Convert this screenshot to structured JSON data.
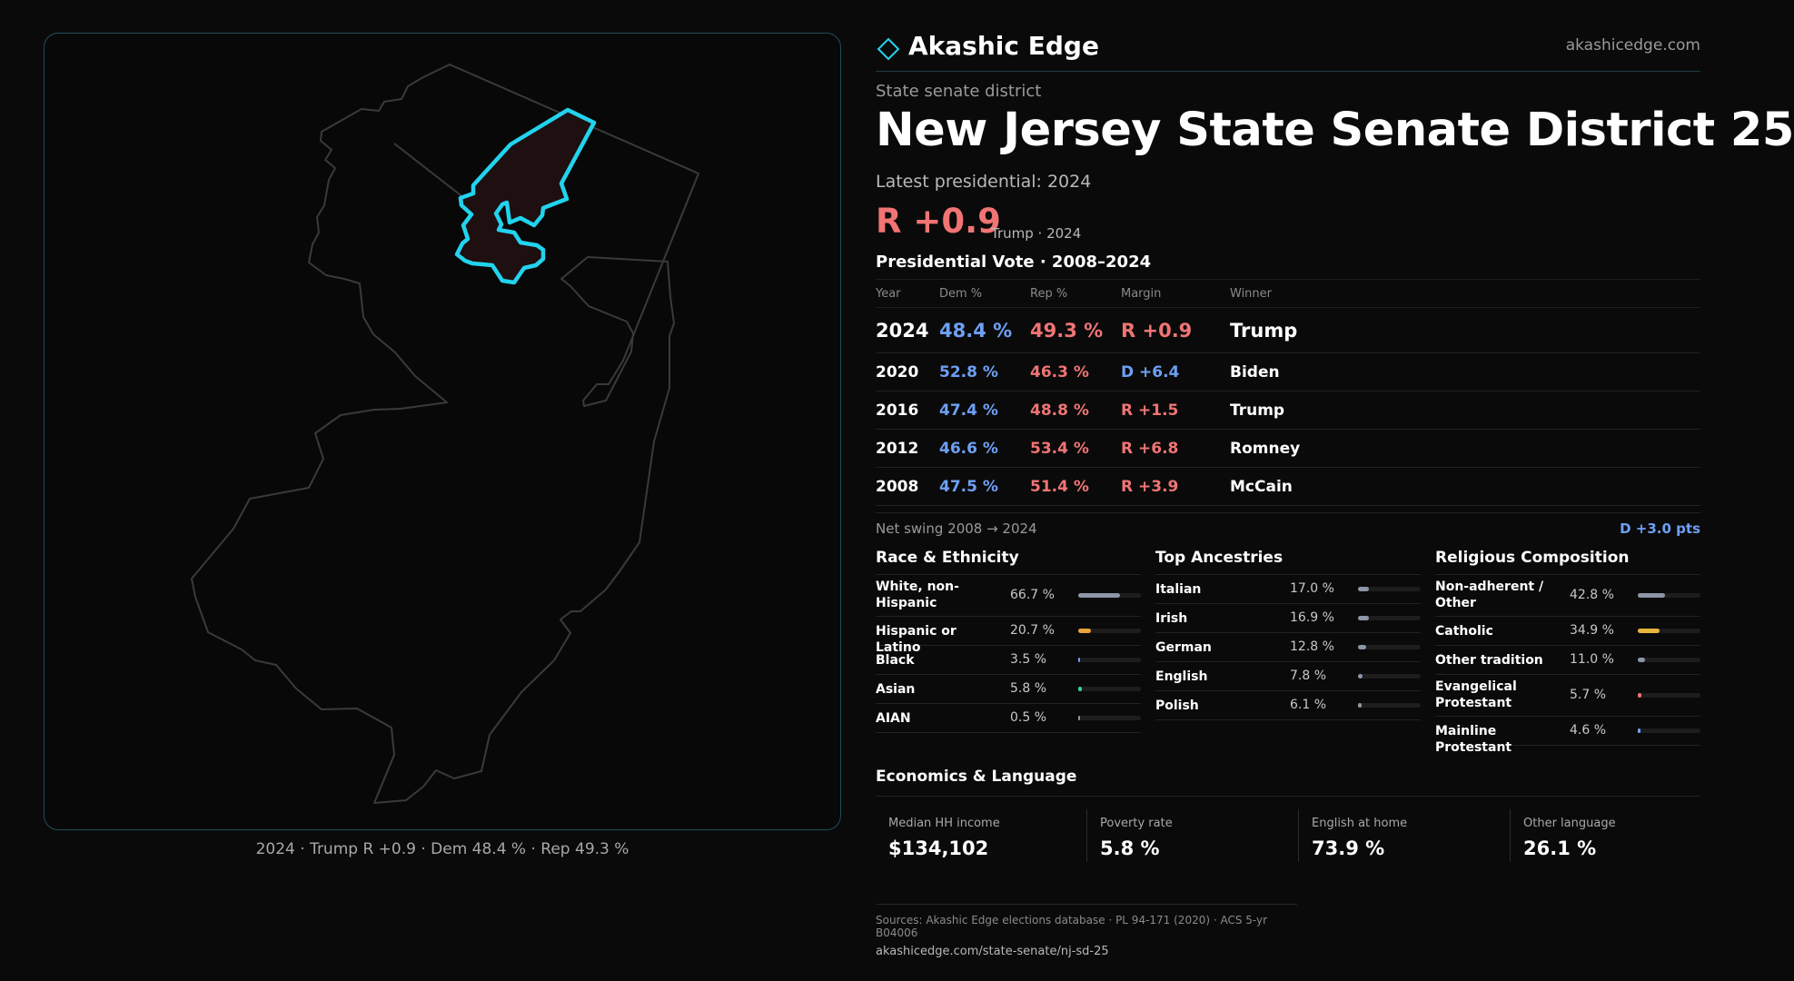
{
  "brand": {
    "name": "Akashic Edge",
    "site": "akashicedge.com"
  },
  "district": {
    "kind": "State senate district",
    "title": "New Jersey State Senate District 25",
    "latest_label": "Latest presidential: 2024",
    "margin": "R +0.9",
    "margin_note": "Trump · 2024"
  },
  "map": {
    "caption": "2024 · Trump R +0.9 · Dem 48.4 % · Rep 49.3 %",
    "state_outline_color": "#3a3a3a",
    "highlight_color": "#22d3ee",
    "highlight_fill": "#1e0f10"
  },
  "presidential": {
    "title": "Presidential Vote · 2008–2024",
    "columns": [
      "Year",
      "Dem %",
      "Rep %",
      "Margin",
      "Winner"
    ],
    "rows": [
      {
        "year": "2024",
        "dem": "48.4 %",
        "rep": "49.3 %",
        "margin": "R +0.9",
        "party": "R",
        "winner": "Trump"
      },
      {
        "year": "2020",
        "dem": "52.8 %",
        "rep": "46.3 %",
        "margin": "D +6.4",
        "party": "D",
        "winner": "Biden"
      },
      {
        "year": "2016",
        "dem": "47.4 %",
        "rep": "48.8 %",
        "margin": "R +1.5",
        "party": "R",
        "winner": "Trump"
      },
      {
        "year": "2012",
        "dem": "46.6 %",
        "rep": "53.4 %",
        "margin": "R +6.8",
        "party": "R",
        "winner": "Romney"
      },
      {
        "year": "2008",
        "dem": "47.5 %",
        "rep": "51.4 %",
        "margin": "R +3.9",
        "party": "R",
        "winner": "McCain"
      }
    ],
    "swing_label": "Net swing 2008 → 2024",
    "swing_value": "D +3.0 pts"
  },
  "race": {
    "title": "Race & Ethnicity",
    "items": [
      {
        "label": "White, non-Hispanic",
        "pct": "66.7 %",
        "value": 66.7,
        "color": "#8d96a8"
      },
      {
        "label": "Hispanic or Latino",
        "pct": "20.7 %",
        "value": 20.7,
        "color": "#e8a33c"
      },
      {
        "label": "Black",
        "pct": "3.5 %",
        "value": 3.5,
        "color": "#6ea0f5"
      },
      {
        "label": "Asian",
        "pct": "5.8 %",
        "value": 5.8,
        "color": "#34d399"
      },
      {
        "label": "AIAN",
        "pct": "0.5 %",
        "value": 0.5,
        "color": "#8d96a8"
      }
    ]
  },
  "ancestry": {
    "title": "Top Ancestries",
    "items": [
      {
        "label": "Italian",
        "pct": "17.0 %",
        "value": 17.0,
        "color": "#8d96a8"
      },
      {
        "label": "Irish",
        "pct": "16.9 %",
        "value": 16.9,
        "color": "#8d96a8"
      },
      {
        "label": "German",
        "pct": "12.8 %",
        "value": 12.8,
        "color": "#8d96a8"
      },
      {
        "label": "English",
        "pct": "7.8 %",
        "value": 7.8,
        "color": "#8d96a8"
      },
      {
        "label": "Polish",
        "pct": "6.1 %",
        "value": 6.1,
        "color": "#8d96a8"
      }
    ]
  },
  "religion": {
    "title": "Religious Composition",
    "items": [
      {
        "label": "Non-adherent / Other",
        "pct": "42.8 %",
        "value": 42.8,
        "color": "#8d96a8"
      },
      {
        "label": "Catholic",
        "pct": "34.9 %",
        "value": 34.9,
        "color": "#e8b53c"
      },
      {
        "label": "Other tradition",
        "pct": "11.0 %",
        "value": 11.0,
        "color": "#8d96a8"
      },
      {
        "label": "Evangelical Protestant",
        "pct": "5.7 %",
        "value": 5.7,
        "color": "#f07474"
      },
      {
        "label": "Mainline Protestant",
        "pct": "4.6 %",
        "value": 4.6,
        "color": "#6ea0f5"
      }
    ]
  },
  "economics": {
    "title": "Economics & Language",
    "cells": [
      {
        "label": "Median HH income",
        "value": "$134,102"
      },
      {
        "label": "Poverty rate",
        "value": "5.8 %"
      },
      {
        "label": "English at home",
        "value": "73.9 %"
      },
      {
        "label": "Other language",
        "value": "26.1 %"
      }
    ]
  },
  "footer": {
    "sources": "Sources: Akashic Edge elections database · PL 94-171 (2020) · ACS 5-yr B04006",
    "url": "akashicedge.com/state-senate/nj-sd-25"
  }
}
